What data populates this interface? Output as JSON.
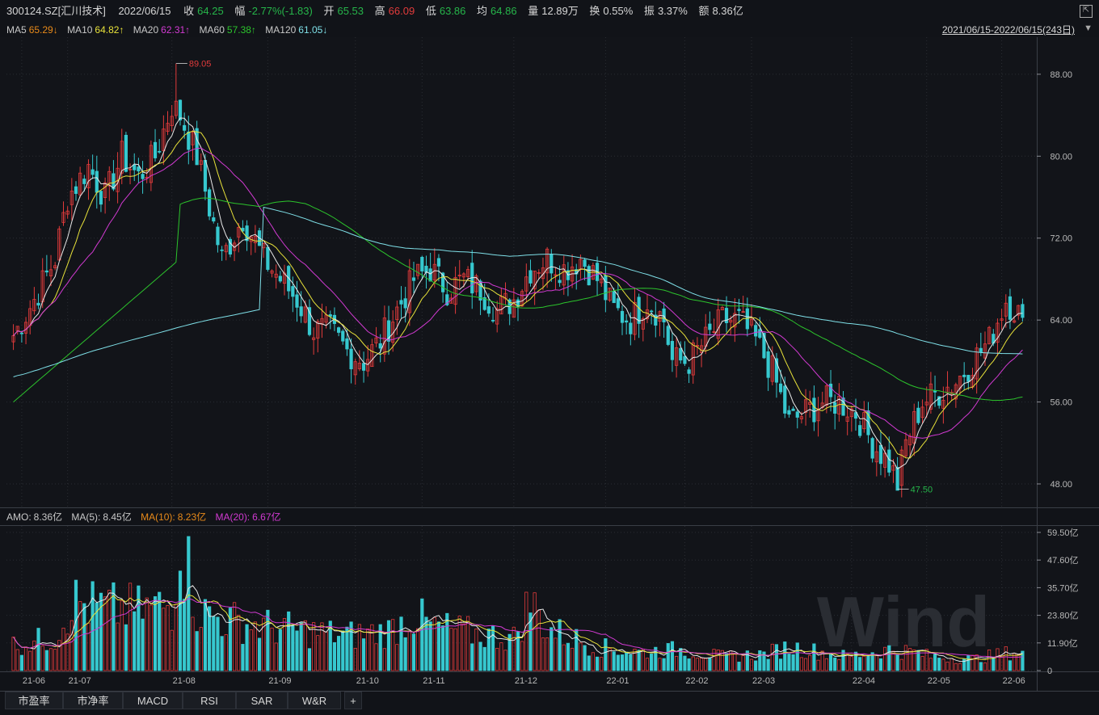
{
  "quote": {
    "code": "300124.SZ[汇川技术]",
    "date": "2022/06/15",
    "close_label": "收",
    "close": "64.25",
    "chg_label": "幅",
    "chg": "-2.77%(-1.83)",
    "open_label": "开",
    "open": "65.53",
    "high_label": "高",
    "high": "66.09",
    "low_label": "低",
    "low": "63.86",
    "avg_label": "均",
    "avg": "64.86",
    "vol_label": "量",
    "vol": "12.89万",
    "turn_label": "换",
    "turn": "0.55%",
    "amp_label": "振",
    "amp": "3.37%",
    "amt_label": "额",
    "amt": "8.36亿"
  },
  "ma": [
    {
      "name": "MA5",
      "value": "65.29↓",
      "color": "#e88a1a"
    },
    {
      "name": "MA10",
      "value": "64.82↑",
      "color": "#e8e23a"
    },
    {
      "name": "MA20",
      "value": "62.31↑",
      "color": "#d23ad2"
    },
    {
      "name": "MA60",
      "value": "57.38↑",
      "color": "#2cc42c"
    },
    {
      "name": "MA120",
      "value": "61.05↓",
      "color": "#7fe0e8"
    }
  ],
  "range": "2021/06/15-2022/06/15(243日)",
  "amo": [
    {
      "name": "AMO:",
      "value": "8.36亿",
      "color": "#d6d6d6"
    },
    {
      "name": "MA(5):",
      "value": "8.45亿",
      "color": "#d6d6d6"
    },
    {
      "name": "MA(10):",
      "value": "8.23亿",
      "color": "#e88a1a"
    },
    {
      "name": "MA(20):",
      "value": "6.67亿",
      "color": "#d23ad2"
    }
  ],
  "tabs": [
    "市盈率",
    "市净率",
    "MACD",
    "RSI",
    "SAR",
    "W&R",
    "+"
  ],
  "watermark": "Wind",
  "colors": {
    "up": "#e23b3b",
    "down": "#36c8cf",
    "grid": "#2a2d33",
    "bg": "#111318"
  },
  "chart_data": [
    {
      "type": "candlestick",
      "y_ticks": [
        "88.00",
        "80.00",
        "72.00",
        "64.00",
        "56.00",
        "48.00"
      ],
      "ylim": [
        46.5,
        90.2
      ],
      "x_ticks": [
        {
          "label": "21-06",
          "i": 2
        },
        {
          "label": "21-07",
          "i": 13
        },
        {
          "label": "21-08",
          "i": 38
        },
        {
          "label": "21-09",
          "i": 61
        },
        {
          "label": "21-10",
          "i": 82
        },
        {
          "label": "21-11",
          "i": 98
        },
        {
          "label": "21-12",
          "i": 120
        },
        {
          "label": "22-01",
          "i": 142
        },
        {
          "label": "22-02",
          "i": 161
        },
        {
          "label": "22-03",
          "i": 177
        },
        {
          "label": "22-04",
          "i": 201
        },
        {
          "label": "22-05",
          "i": 219
        },
        {
          "label": "22-06",
          "i": 237
        }
      ],
      "annotations": [
        {
          "text": "89.05",
          "value": 89.05,
          "i": 39,
          "color": "#e23b3b"
        },
        {
          "text": "47.50",
          "value": 47.5,
          "i": 212,
          "color": "#26b54a"
        }
      ],
      "anchors_close": [
        [
          0,
          62.5
        ],
        [
          5,
          66
        ],
        [
          10,
          70
        ],
        [
          13,
          76
        ],
        [
          18,
          79
        ],
        [
          22,
          76
        ],
        [
          26,
          80
        ],
        [
          30,
          78
        ],
        [
          34,
          80
        ],
        [
          38,
          85
        ],
        [
          40,
          84
        ],
        [
          44,
          80
        ],
        [
          47,
          75
        ],
        [
          50,
          70
        ],
        [
          55,
          74
        ],
        [
          60,
          70
        ],
        [
          64,
          68
        ],
        [
          68,
          66
        ],
        [
          72,
          63
        ],
        [
          76,
          63
        ],
        [
          80,
          61
        ],
        [
          84,
          60
        ],
        [
          88,
          62
        ],
        [
          92,
          65
        ],
        [
          96,
          68
        ],
        [
          100,
          69
        ],
        [
          104,
          67
        ],
        [
          108,
          68
        ],
        [
          112,
          67
        ],
        [
          116,
          65
        ],
        [
          120,
          66
        ],
        [
          124,
          69
        ],
        [
          128,
          70
        ],
        [
          132,
          69
        ],
        [
          136,
          70
        ],
        [
          140,
          68
        ],
        [
          144,
          65
        ],
        [
          148,
          64
        ],
        [
          152,
          66
        ],
        [
          156,
          64
        ],
        [
          158,
          60
        ],
        [
          162,
          60
        ],
        [
          166,
          62
        ],
        [
          170,
          64
        ],
        [
          174,
          64
        ],
        [
          178,
          62
        ],
        [
          182,
          59
        ],
        [
          186,
          54
        ],
        [
          190,
          55
        ],
        [
          194,
          56
        ],
        [
          198,
          56
        ],
        [
          202,
          55
        ],
        [
          206,
          52
        ],
        [
          210,
          50
        ],
        [
          212,
          48
        ],
        [
          214,
          52
        ],
        [
          218,
          56
        ],
        [
          222,
          57
        ],
        [
          226,
          58
        ],
        [
          230,
          60
        ],
        [
          234,
          62
        ],
        [
          238,
          66
        ],
        [
          242,
          64.25
        ]
      ],
      "ma_series": [
        {
          "name": "MA5",
          "color": "#e8e8e8"
        },
        {
          "name": "MA10",
          "color": "#e8e23a"
        },
        {
          "name": "MA20",
          "color": "#d23ad2"
        },
        {
          "name": "MA60",
          "color": "#2cc42c"
        },
        {
          "name": "MA120",
          "color": "#7fe0e8"
        }
      ]
    },
    {
      "type": "bar",
      "y_ticks": [
        "59.50亿",
        "47.60亿",
        "35.70亿",
        "23.80亿",
        "11.90亿",
        "0"
      ],
      "ylim": [
        0,
        59.5
      ],
      "anchors_amount": [
        [
          0,
          11
        ],
        [
          10,
          14
        ],
        [
          14,
          30
        ],
        [
          20,
          27
        ],
        [
          30,
          26
        ],
        [
          38,
          28
        ],
        [
          40,
          60
        ],
        [
          44,
          26
        ],
        [
          50,
          22
        ],
        [
          60,
          19
        ],
        [
          70,
          17
        ],
        [
          80,
          15
        ],
        [
          90,
          17
        ],
        [
          96,
          24
        ],
        [
          100,
          19
        ],
        [
          110,
          16
        ],
        [
          120,
          14
        ],
        [
          124,
          30
        ],
        [
          128,
          18
        ],
        [
          140,
          10
        ],
        [
          150,
          8
        ],
        [
          160,
          9
        ],
        [
          170,
          6
        ],
        [
          180,
          7
        ],
        [
          186,
          10
        ],
        [
          190,
          9
        ],
        [
          200,
          6
        ],
        [
          210,
          9
        ],
        [
          216,
          8
        ],
        [
          220,
          6
        ],
        [
          230,
          5
        ],
        [
          240,
          8
        ],
        [
          242,
          8.36
        ]
      ]
    }
  ]
}
